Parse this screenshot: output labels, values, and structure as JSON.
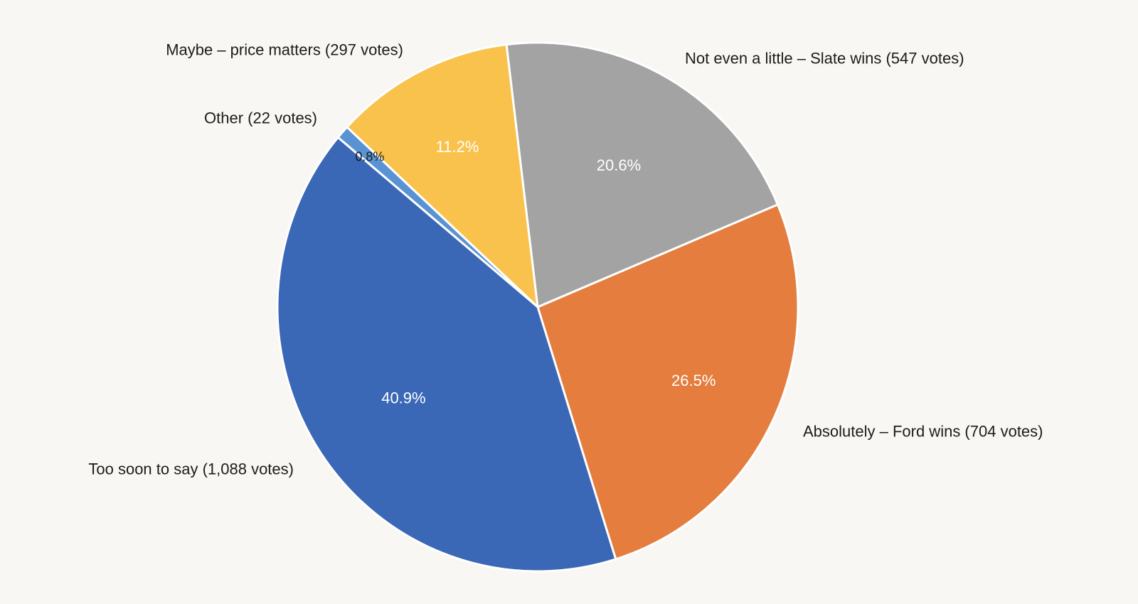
{
  "chart_data": {
    "type": "pie",
    "slices": [
      {
        "label": "Absolutely – Ford wins (704 votes)",
        "votes": 704,
        "percent_label": "26.5%",
        "color": "#e47d3d",
        "pct_text_color": "#ffffff"
      },
      {
        "label": "Too soon to say (1,088 votes)",
        "votes": 1088,
        "percent_label": "40.9%",
        "color": "#3a68b6",
        "pct_text_color": "#ffffff"
      },
      {
        "label": "Other (22 votes)",
        "votes": 22,
        "percent_label": "0.8%",
        "color": "#5a93d3",
        "pct_text_color": "#1c1c1c"
      },
      {
        "label": "Maybe – price matters (297 votes)",
        "votes": 297,
        "percent_label": "11.2%",
        "color": "#f9c24d",
        "pct_text_color": "#ffffff"
      },
      {
        "label": "Not even a little – Slate wins (547 votes)",
        "votes": 547,
        "percent_label": "20.6%",
        "color": "#a3a3a3",
        "pct_text_color": "#ffffff"
      }
    ]
  }
}
